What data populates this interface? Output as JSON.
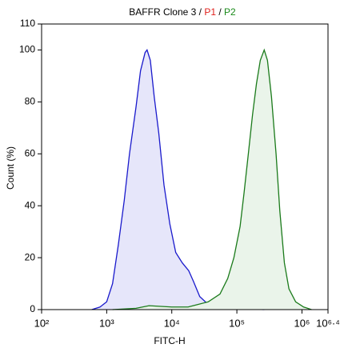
{
  "chart_data": {
    "type": "histogram-overlay",
    "title_parts": [
      {
        "text": "BAFFR Clone 3 / ",
        "color": "#000000"
      },
      {
        "text": "P1",
        "color": "#e0201b"
      },
      {
        "text": " / ",
        "color": "#000000"
      },
      {
        "text": "P2",
        "color": "#1a8a1a"
      }
    ],
    "x_label": "FITC-H",
    "y_label": "Count  (%)",
    "log_x": true,
    "xlim": [
      100,
      2511886
    ],
    "xticks": [
      {
        "value": 100,
        "label": "10²"
      },
      {
        "value": 1000,
        "label": "10³"
      },
      {
        "value": 10000,
        "label": "10⁴"
      },
      {
        "value": 100000,
        "label": "10⁵"
      },
      {
        "value": 1000000,
        "label": "10⁶"
      },
      {
        "value": 2511886,
        "label": "10⁶·⁴"
      }
    ],
    "ylim": [
      0,
      110
    ],
    "yticks": [
      0,
      20,
      40,
      60,
      80,
      100,
      110
    ],
    "series": [
      {
        "color": "#1a1acc",
        "fill": "#e6e6fa",
        "x": [
          590,
          790,
          1000,
          1230,
          1510,
          1860,
          2240,
          2820,
          3310,
          3890,
          4170,
          4680,
          5370,
          6310,
          7590,
          9330,
          11500,
          14500,
          18200,
          21400,
          26900,
          36300,
          55000,
          112000,
          263000
        ],
        "values": [
          0,
          1,
          3,
          10,
          25,
          42,
          60,
          78,
          92,
          99,
          100,
          96,
          82,
          68,
          48,
          33,
          22,
          18,
          15,
          11,
          5,
          2,
          0.5,
          0.3,
          0
        ]
      },
      {
        "color": "#1a7a1a",
        "fill": "#eaf4ea",
        "x": [
          1230,
          2820,
          4470,
          10000,
          17800,
          36300,
          55000,
          72400,
          90000,
          112000,
          129000,
          150000,
          174000,
          200000,
          229000,
          263000,
          295000,
          340000,
          400000,
          457000,
          537000,
          631000,
          800000,
          1060000,
          1400000
        ],
        "values": [
          0,
          0.5,
          1.5,
          1,
          1,
          3,
          6,
          12,
          20,
          32,
          45,
          60,
          75,
          87,
          96,
          100,
          96,
          82,
          60,
          38,
          18,
          8,
          3,
          1,
          0
        ]
      }
    ]
  }
}
